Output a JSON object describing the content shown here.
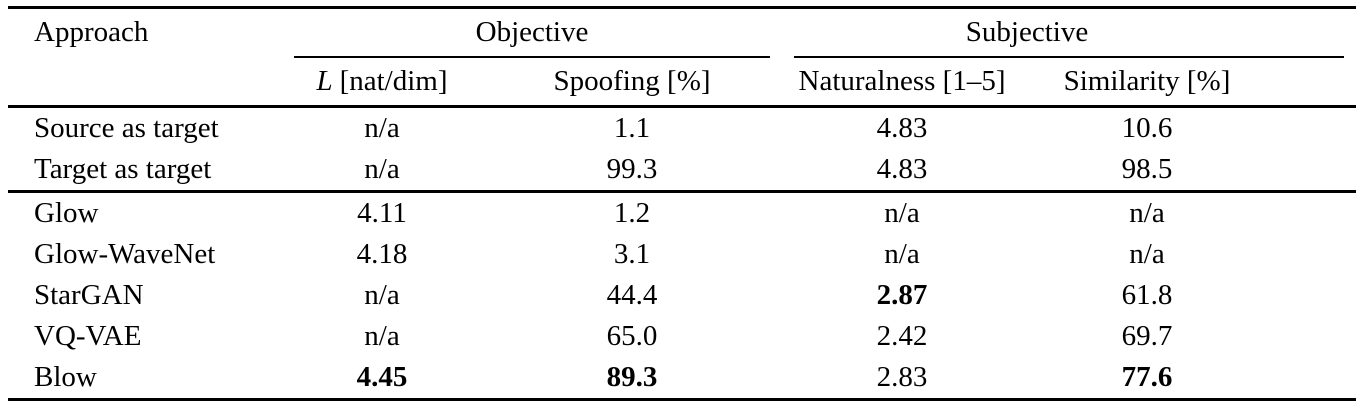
{
  "table": {
    "header": {
      "approach": "Approach",
      "objective_group": "Objective",
      "subjective_group": "Subjective",
      "l_symbol": "L",
      "l_suffix": "[nat/dim]",
      "spoofing": "Spoofing [%]",
      "naturalness": "Naturalness [1–5]",
      "similarity": "Similarity [%]"
    },
    "rows": [
      {
        "approach": "Source as target",
        "l": "n/a",
        "spoofing": "1.1",
        "naturalness": "4.83",
        "similarity": "10.6"
      },
      {
        "approach": "Target as target",
        "l": "n/a",
        "spoofing": "99.3",
        "naturalness": "4.83",
        "similarity": "98.5"
      },
      {
        "approach": "Glow",
        "l": "4.11",
        "spoofing": "1.2",
        "naturalness": "n/a",
        "similarity": "n/a"
      },
      {
        "approach": "Glow-WaveNet",
        "l": "4.18",
        "spoofing": "3.1",
        "naturalness": "n/a",
        "similarity": "n/a"
      },
      {
        "approach": "StarGAN",
        "l": "n/a",
        "spoofing": "44.4",
        "naturalness": "2.87",
        "similarity": "61.8"
      },
      {
        "approach": "VQ-VAE",
        "l": "n/a",
        "spoofing": "65.0",
        "naturalness": "2.42",
        "similarity": "69.7"
      },
      {
        "approach": "Blow",
        "l": "4.45",
        "spoofing": "89.3",
        "naturalness": "2.83",
        "similarity": "77.6"
      }
    ],
    "colors": {
      "text": "#000000",
      "background": "#ffffff",
      "rule": "#000000"
    }
  }
}
